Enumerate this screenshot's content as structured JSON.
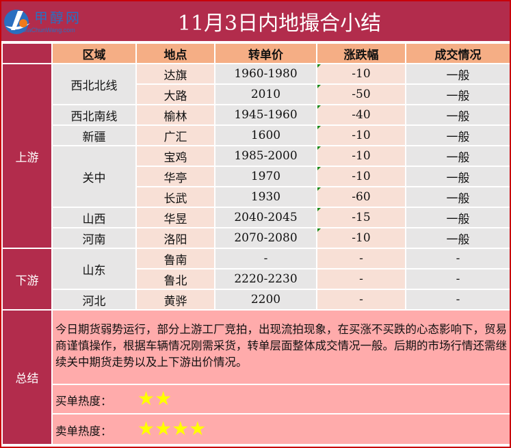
{
  "header": {
    "title": "11月3日内地撮合小结",
    "logo_brand": "甲醇网",
    "logo_url": "JiaChunWang.com"
  },
  "columns": [
    "区域",
    "地点",
    "转单价",
    "涨跌幅",
    "成交情况"
  ],
  "sections": {
    "upstream": "上游",
    "downstream": "下游",
    "summary": "总结"
  },
  "regions": [
    "西北北线",
    "西北南线",
    "新疆",
    "关中",
    "山西",
    "河南",
    "山东",
    "河北"
  ],
  "rows": [
    {
      "place": "达旗",
      "price": "1960-1980",
      "change": "-10",
      "status": "一般"
    },
    {
      "place": "大路",
      "price": "2010",
      "change": "-50",
      "status": "一般"
    },
    {
      "place": "榆林",
      "price": "1945-1960",
      "change": "-40",
      "status": "一般"
    },
    {
      "place": "广汇",
      "price": "1600",
      "change": "-10",
      "status": "一般"
    },
    {
      "place": "宝鸡",
      "price": "1985-2000",
      "change": "-10",
      "status": "一般"
    },
    {
      "place": "华亭",
      "price": "1970",
      "change": "-10",
      "status": "一般"
    },
    {
      "place": "长武",
      "price": "1930",
      "change": "-60",
      "status": "一般"
    },
    {
      "place": "华昱",
      "price": "2040-2045",
      "change": "-15",
      "status": "一般"
    },
    {
      "place": "洛阳",
      "price": "2070-2080",
      "change": "-10",
      "status": "一般"
    },
    {
      "place": "鲁南",
      "price": "-",
      "change": "-",
      "status": "-"
    },
    {
      "place": "鲁北",
      "price": "2220-2230",
      "change": "-",
      "status": "-"
    },
    {
      "place": "黄骅",
      "price": "2200",
      "change": "-",
      "status": "-"
    }
  ],
  "summary": {
    "text": "今日期货弱势运行，部分上游工厂竞拍，出现流拍现象，在买涨不买跌的心态影响下，贸易商谨慎操作，根据车辆情况刚需采货，转单层面整体成交情况一般。后期的市场行情还需继续关中期货走势以及上下游出价情况。",
    "buy_label": "买单热度：",
    "buy_stars": 2,
    "sell_label": "卖单热度：",
    "sell_stars": 4
  },
  "colors": {
    "accent": "#b22c4c",
    "header": "#f5ae85",
    "summary": "#ffabab",
    "star": "#ffff00"
  }
}
